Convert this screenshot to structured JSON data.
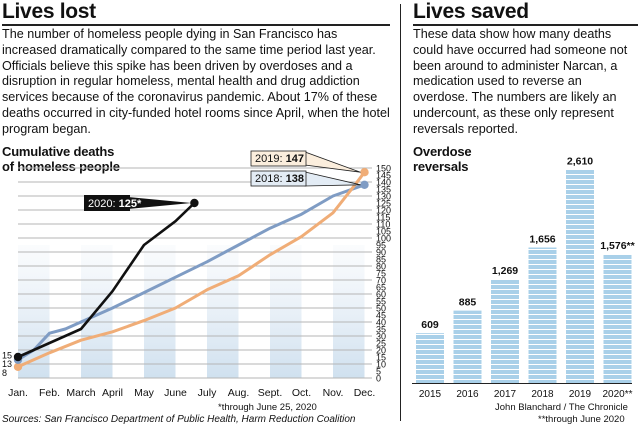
{
  "left_panel": {
    "title": "Lives lost",
    "body": "The number of homeless people dying in San Francisco has increased dramatically compared to the same time period last year. Officials believe this spike has been driven by overdoses and a disruption in regular homeless, mental health and drug addiction services because of the coronavirus pandemic. About 17% of these deaths occurred in city-funded hotel rooms since April, when the hotel program began.",
    "chart_heading_line1": "Cumulative deaths",
    "chart_heading_line2": "of homeless people",
    "footnote": "*through June 25, 2020",
    "source": "Sources: San Francisco Department of Public Health, Harm Reduction Coalition"
  },
  "right_panel": {
    "title": "Lives saved",
    "body": "These data show how many deaths could have occurred had someone not been around to administer Narcan, a medication used to reverse an overdose. The numbers are likely an undercount, as these only represent reversals reported.",
    "chart_heading_line1": "Overdose",
    "chart_heading_line2": "reversals",
    "footnote": "**through June 2020",
    "credit": "John Blanchard / The Chronicle"
  },
  "colors": {
    "series_2020": "#111111",
    "series_2019": "#f0ad77",
    "series_2018": "#7f9cc4",
    "bar_fill": "#a9d0e9",
    "bar_stripe": "#ffffff",
    "grid": "#b5b5b5",
    "label_box_2019": "#fbeedd",
    "label_box_2018": "#e3ecf5"
  },
  "chart_data": [
    {
      "type": "line",
      "title": "Cumulative deaths of homeless people",
      "xlabel": "",
      "ylabel": "",
      "categories": [
        "Jan.",
        "Feb.",
        "March",
        "April",
        "May",
        "June",
        "July",
        "Aug.",
        "Sept.",
        "Oct.",
        "Nov.",
        "Dec."
      ],
      "ylim": [
        0,
        150
      ],
      "yticks": [
        0,
        5,
        10,
        15,
        20,
        25,
        30,
        35,
        40,
        45,
        50,
        55,
        60,
        65,
        70,
        75,
        80,
        85,
        90,
        95,
        100,
        105,
        110,
        115,
        120,
        125,
        130,
        135,
        140,
        145,
        150
      ],
      "grid": true,
      "series": [
        {
          "name": "2018",
          "label": "2018:",
          "end_label": "138",
          "color_key": "series_2018",
          "x": [
            0,
            0.5,
            1,
            1.5,
            2,
            3,
            4,
            5,
            6,
            7,
            8,
            9,
            10,
            11
          ],
          "values": [
            13,
            20,
            32,
            35,
            40,
            50,
            61,
            72,
            83,
            95,
            107,
            117,
            130,
            138
          ]
        },
        {
          "name": "2019",
          "label": "2019:",
          "end_label": "147",
          "color_key": "series_2019",
          "x": [
            0,
            1,
            2,
            3,
            4,
            5,
            6,
            7,
            8,
            9,
            10,
            10.7,
            11
          ],
          "values": [
            8,
            18,
            27,
            33,
            41,
            50,
            63,
            73,
            88,
            101,
            118,
            138,
            147
          ]
        },
        {
          "name": "2020",
          "label": "2020:",
          "end_label": "125*",
          "color_key": "series_2020",
          "x": [
            0,
            1,
            2,
            3,
            4,
            5,
            5.6
          ],
          "values": [
            15,
            25,
            35,
            62,
            95,
            112,
            125
          ]
        }
      ],
      "start_labels": [
        "15",
        "13",
        "8"
      ]
    },
    {
      "type": "bar",
      "title": "Overdose reversals",
      "categories": [
        "2015",
        "2016",
        "2017",
        "2018",
        "2019",
        "2020**"
      ],
      "values": [
        609,
        885,
        1269,
        1656,
        2610,
        1576
      ],
      "value_labels": [
        "609",
        "885",
        "1,269",
        "1,656",
        "2,610",
        "1,576**"
      ],
      "ylim": [
        0,
        2750
      ]
    }
  ]
}
